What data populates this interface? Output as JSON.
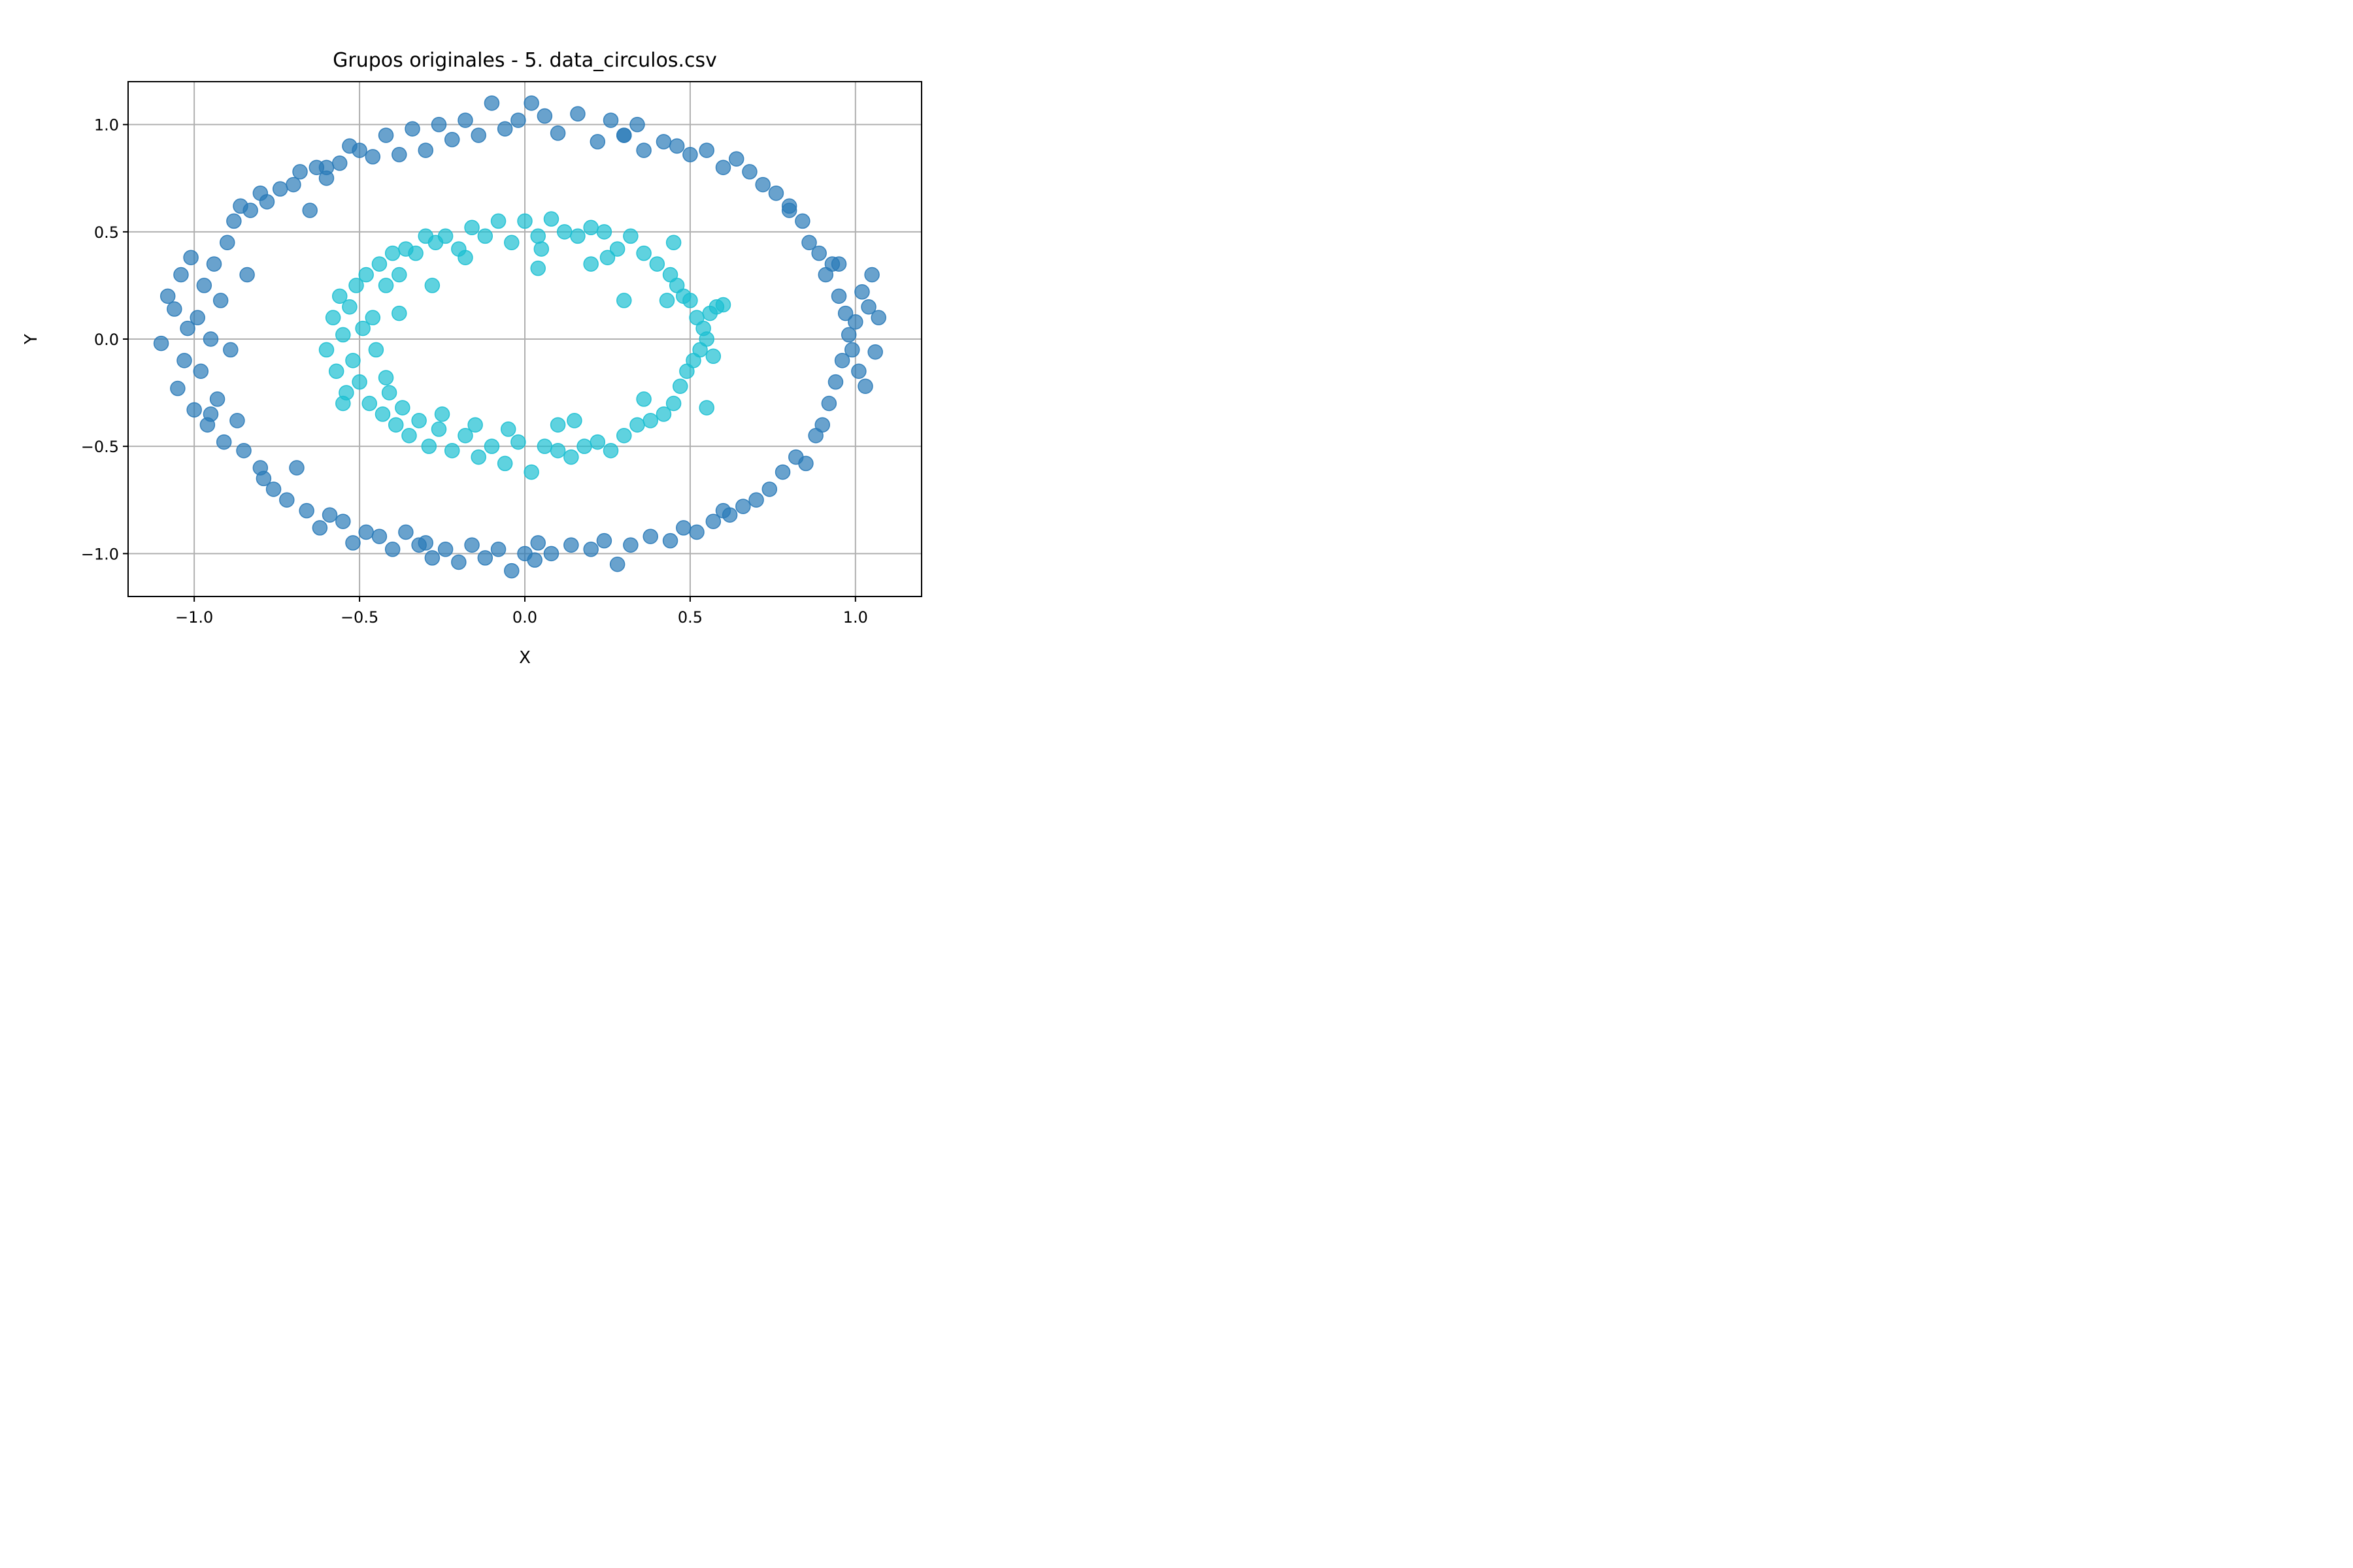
{
  "chart_data": {
    "type": "scatter",
    "title": "Grupos originales - 5. data_circulos.csv",
    "xlabel": "X",
    "ylabel": "Y",
    "xlim": [
      -1.2,
      1.2
    ],
    "ylim": [
      -1.2,
      1.2
    ],
    "grid": true,
    "x_ticks": [
      {
        "value": -1.0,
        "label": "−1.0"
      },
      {
        "value": -0.5,
        "label": "−0.5"
      },
      {
        "value": 0.0,
        "label": "0.0"
      },
      {
        "value": 0.5,
        "label": "0.5"
      },
      {
        "value": 1.0,
        "label": "1.0"
      }
    ],
    "y_ticks": [
      {
        "value": 1.0,
        "label": "1.0"
      },
      {
        "value": 0.5,
        "label": "0.5"
      },
      {
        "value": 0.0,
        "label": "0.0"
      },
      {
        "value": -0.5,
        "label": "−0.5"
      },
      {
        "value": -1.0,
        "label": "−1.0"
      }
    ],
    "series": [
      {
        "color": "#2a7ab8",
        "points": [
          [
            -1.1,
            -0.02
          ],
          [
            -1.08,
            0.2
          ],
          [
            -1.06,
            0.14
          ],
          [
            -1.05,
            -0.23
          ],
          [
            -1.04,
            0.3
          ],
          [
            -1.03,
            -0.1
          ],
          [
            -1.02,
            0.05
          ],
          [
            -1.01,
            0.38
          ],
          [
            -1.0,
            -0.33
          ],
          [
            -0.99,
            0.1
          ],
          [
            -0.98,
            -0.15
          ],
          [
            -0.97,
            0.25
          ],
          [
            -0.96,
            -0.4
          ],
          [
            -0.95,
            0.0
          ],
          [
            -0.94,
            0.35
          ],
          [
            -0.93,
            -0.28
          ],
          [
            -0.92,
            0.18
          ],
          [
            -0.91,
            -0.48
          ],
          [
            -0.9,
            0.45
          ],
          [
            -0.89,
            -0.05
          ],
          [
            -0.88,
            0.55
          ],
          [
            -0.87,
            -0.38
          ],
          [
            -0.86,
            0.62
          ],
          [
            -0.85,
            -0.52
          ],
          [
            -0.84,
            0.3
          ],
          [
            -0.83,
            0.6
          ],
          [
            -0.8,
            0.68
          ],
          [
            -0.79,
            -0.65
          ],
          [
            -0.78,
            0.64
          ],
          [
            -0.76,
            -0.7
          ],
          [
            -0.74,
            0.7
          ],
          [
            -0.72,
            -0.75
          ],
          [
            -0.7,
            0.72
          ],
          [
            -0.69,
            -0.6
          ],
          [
            -0.68,
            0.78
          ],
          [
            -0.66,
            -0.8
          ],
          [
            -0.65,
            0.6
          ],
          [
            -0.63,
            0.8
          ],
          [
            -0.62,
            -0.88
          ],
          [
            -0.6,
            0.75
          ],
          [
            -0.59,
            -0.82
          ],
          [
            -0.56,
            0.82
          ],
          [
            -0.55,
            -0.85
          ],
          [
            -0.53,
            0.9
          ],
          [
            -0.52,
            -0.95
          ],
          [
            -0.5,
            0.88
          ],
          [
            -0.48,
            -0.9
          ],
          [
            -0.46,
            0.85
          ],
          [
            -0.44,
            -0.92
          ],
          [
            -0.42,
            0.95
          ],
          [
            -0.4,
            -0.98
          ],
          [
            -0.38,
            0.86
          ],
          [
            -0.36,
            -0.9
          ],
          [
            -0.34,
            0.98
          ],
          [
            -0.32,
            -0.96
          ],
          [
            -0.3,
            0.88
          ],
          [
            -0.28,
            -1.02
          ],
          [
            -0.26,
            1.0
          ],
          [
            -0.24,
            -0.98
          ],
          [
            -0.22,
            0.93
          ],
          [
            -0.2,
            -1.04
          ],
          [
            -0.18,
            1.02
          ],
          [
            -0.16,
            -0.96
          ],
          [
            -0.14,
            0.95
          ],
          [
            -0.12,
            -1.02
          ],
          [
            -0.1,
            1.1
          ],
          [
            -0.08,
            -0.98
          ],
          [
            -0.06,
            0.98
          ],
          [
            -0.04,
            -1.08
          ],
          [
            -0.02,
            1.02
          ],
          [
            0.0,
            -1.0
          ],
          [
            0.02,
            1.1
          ],
          [
            0.04,
            -0.95
          ],
          [
            0.06,
            1.04
          ],
          [
            0.08,
            -1.0
          ],
          [
            0.1,
            0.96
          ],
          [
            0.14,
            -0.96
          ],
          [
            0.16,
            1.05
          ],
          [
            0.2,
            -0.98
          ],
          [
            0.22,
            0.92
          ],
          [
            0.24,
            -0.94
          ],
          [
            0.26,
            1.02
          ],
          [
            0.28,
            -1.05
          ],
          [
            0.3,
            0.95
          ],
          [
            0.32,
            -0.96
          ],
          [
            0.34,
            1.0
          ],
          [
            0.36,
            0.88
          ],
          [
            0.38,
            -0.92
          ],
          [
            0.42,
            0.92
          ],
          [
            0.44,
            -0.94
          ],
          [
            0.46,
            0.9
          ],
          [
            0.48,
            -0.88
          ],
          [
            0.5,
            0.86
          ],
          [
            0.52,
            -0.9
          ],
          [
            0.55,
            0.88
          ],
          [
            0.57,
            -0.85
          ],
          [
            0.6,
            0.8
          ],
          [
            0.62,
            -0.82
          ],
          [
            0.64,
            0.84
          ],
          [
            0.66,
            -0.78
          ],
          [
            0.68,
            0.78
          ],
          [
            0.7,
            -0.75
          ],
          [
            0.72,
            0.72
          ],
          [
            0.74,
            -0.7
          ],
          [
            0.76,
            0.68
          ],
          [
            0.78,
            -0.62
          ],
          [
            0.8,
            0.62
          ],
          [
            0.82,
            -0.55
          ],
          [
            0.84,
            0.55
          ],
          [
            0.85,
            -0.58
          ],
          [
            0.86,
            0.45
          ],
          [
            0.88,
            -0.45
          ],
          [
            0.89,
            0.4
          ],
          [
            0.9,
            -0.4
          ],
          [
            0.91,
            0.3
          ],
          [
            0.92,
            -0.3
          ],
          [
            0.93,
            0.35
          ],
          [
            0.94,
            -0.2
          ],
          [
            0.95,
            0.2
          ],
          [
            0.96,
            -0.1
          ],
          [
            0.97,
            0.12
          ],
          [
            0.98,
            0.02
          ],
          [
            0.99,
            -0.05
          ],
          [
            1.0,
            0.08
          ],
          [
            1.01,
            -0.15
          ],
          [
            1.02,
            0.22
          ],
          [
            1.03,
            -0.22
          ],
          [
            1.04,
            0.15
          ],
          [
            1.05,
            0.3
          ],
          [
            1.06,
            -0.06
          ],
          [
            1.07,
            0.1
          ],
          [
            -0.95,
            -0.35
          ],
          [
            0.95,
            0.35
          ],
          [
            -0.3,
            -0.95
          ],
          [
            0.3,
            0.95
          ],
          [
            0.6,
            -0.8
          ],
          [
            -0.6,
            0.8
          ],
          [
            0.8,
            0.6
          ],
          [
            -0.8,
            -0.6
          ],
          [
            0.03,
            -1.03
          ]
        ]
      },
      {
        "color": "#1bbfd1",
        "points": [
          [
            -0.6,
            -0.05
          ],
          [
            -0.58,
            0.1
          ],
          [
            -0.57,
            -0.15
          ],
          [
            -0.56,
            0.2
          ],
          [
            -0.55,
            0.02
          ],
          [
            -0.54,
            -0.25
          ],
          [
            -0.53,
            0.15
          ],
          [
            -0.52,
            -0.1
          ],
          [
            -0.51,
            0.25
          ],
          [
            -0.5,
            -0.2
          ],
          [
            -0.49,
            0.05
          ],
          [
            -0.48,
            0.3
          ],
          [
            -0.47,
            -0.3
          ],
          [
            -0.46,
            0.1
          ],
          [
            -0.45,
            -0.05
          ],
          [
            -0.44,
            0.35
          ],
          [
            -0.43,
            -0.35
          ],
          [
            -0.42,
            0.25
          ],
          [
            -0.41,
            -0.25
          ],
          [
            -0.4,
            0.4
          ],
          [
            -0.39,
            -0.4
          ],
          [
            -0.38,
            0.3
          ],
          [
            -0.37,
            -0.32
          ],
          [
            -0.36,
            0.42
          ],
          [
            -0.35,
            -0.45
          ],
          [
            -0.33,
            0.4
          ],
          [
            -0.32,
            -0.38
          ],
          [
            -0.3,
            0.48
          ],
          [
            -0.29,
            -0.5
          ],
          [
            -0.27,
            0.45
          ],
          [
            -0.26,
            -0.42
          ],
          [
            -0.24,
            0.48
          ],
          [
            -0.22,
            -0.52
          ],
          [
            -0.2,
            0.42
          ],
          [
            -0.18,
            -0.45
          ],
          [
            -0.16,
            0.52
          ],
          [
            -0.14,
            -0.55
          ],
          [
            -0.12,
            0.48
          ],
          [
            -0.1,
            -0.5
          ],
          [
            -0.08,
            0.55
          ],
          [
            -0.06,
            -0.58
          ],
          [
            -0.04,
            0.45
          ],
          [
            -0.02,
            -0.48
          ],
          [
            0.0,
            0.55
          ],
          [
            0.02,
            -0.62
          ],
          [
            0.04,
            0.48
          ],
          [
            0.06,
            -0.5
          ],
          [
            0.08,
            0.56
          ],
          [
            0.1,
            -0.52
          ],
          [
            0.12,
            0.5
          ],
          [
            0.14,
            -0.55
          ],
          [
            0.16,
            0.48
          ],
          [
            0.18,
            -0.5
          ],
          [
            0.2,
            0.52
          ],
          [
            0.22,
            -0.48
          ],
          [
            0.24,
            0.5
          ],
          [
            0.26,
            -0.52
          ],
          [
            0.28,
            0.42
          ],
          [
            0.3,
            -0.45
          ],
          [
            0.32,
            0.48
          ],
          [
            0.34,
            -0.4
          ],
          [
            0.36,
            0.4
          ],
          [
            0.38,
            -0.38
          ],
          [
            0.4,
            0.35
          ],
          [
            0.42,
            -0.35
          ],
          [
            0.44,
            0.3
          ],
          [
            0.45,
            -0.3
          ],
          [
            0.46,
            0.25
          ],
          [
            0.47,
            -0.22
          ],
          [
            0.48,
            0.2
          ],
          [
            0.49,
            -0.15
          ],
          [
            0.5,
            0.18
          ],
          [
            0.51,
            -0.1
          ],
          [
            0.52,
            0.1
          ],
          [
            0.53,
            -0.05
          ],
          [
            0.54,
            0.05
          ],
          [
            0.55,
            0.0
          ],
          [
            0.56,
            0.12
          ],
          [
            0.57,
            -0.08
          ],
          [
            0.58,
            0.15
          ],
          [
            0.6,
            0.16
          ],
          [
            0.45,
            0.45
          ],
          [
            0.3,
            0.18
          ],
          [
            0.04,
            0.33
          ],
          [
            -0.55,
            -0.3
          ],
          [
            0.55,
            -0.32
          ],
          [
            -0.28,
            0.25
          ],
          [
            0.25,
            0.38
          ],
          [
            -0.38,
            0.12
          ],
          [
            0.43,
            0.18
          ],
          [
            -0.42,
            -0.18
          ],
          [
            0.36,
            -0.28
          ],
          [
            -0.18,
            0.38
          ],
          [
            0.15,
            -0.38
          ],
          [
            0.05,
            0.42
          ],
          [
            -0.05,
            -0.42
          ],
          [
            -0.25,
            -0.35
          ],
          [
            0.2,
            0.35
          ],
          [
            -0.15,
            -0.4
          ],
          [
            0.1,
            -0.4
          ]
        ]
      }
    ]
  }
}
